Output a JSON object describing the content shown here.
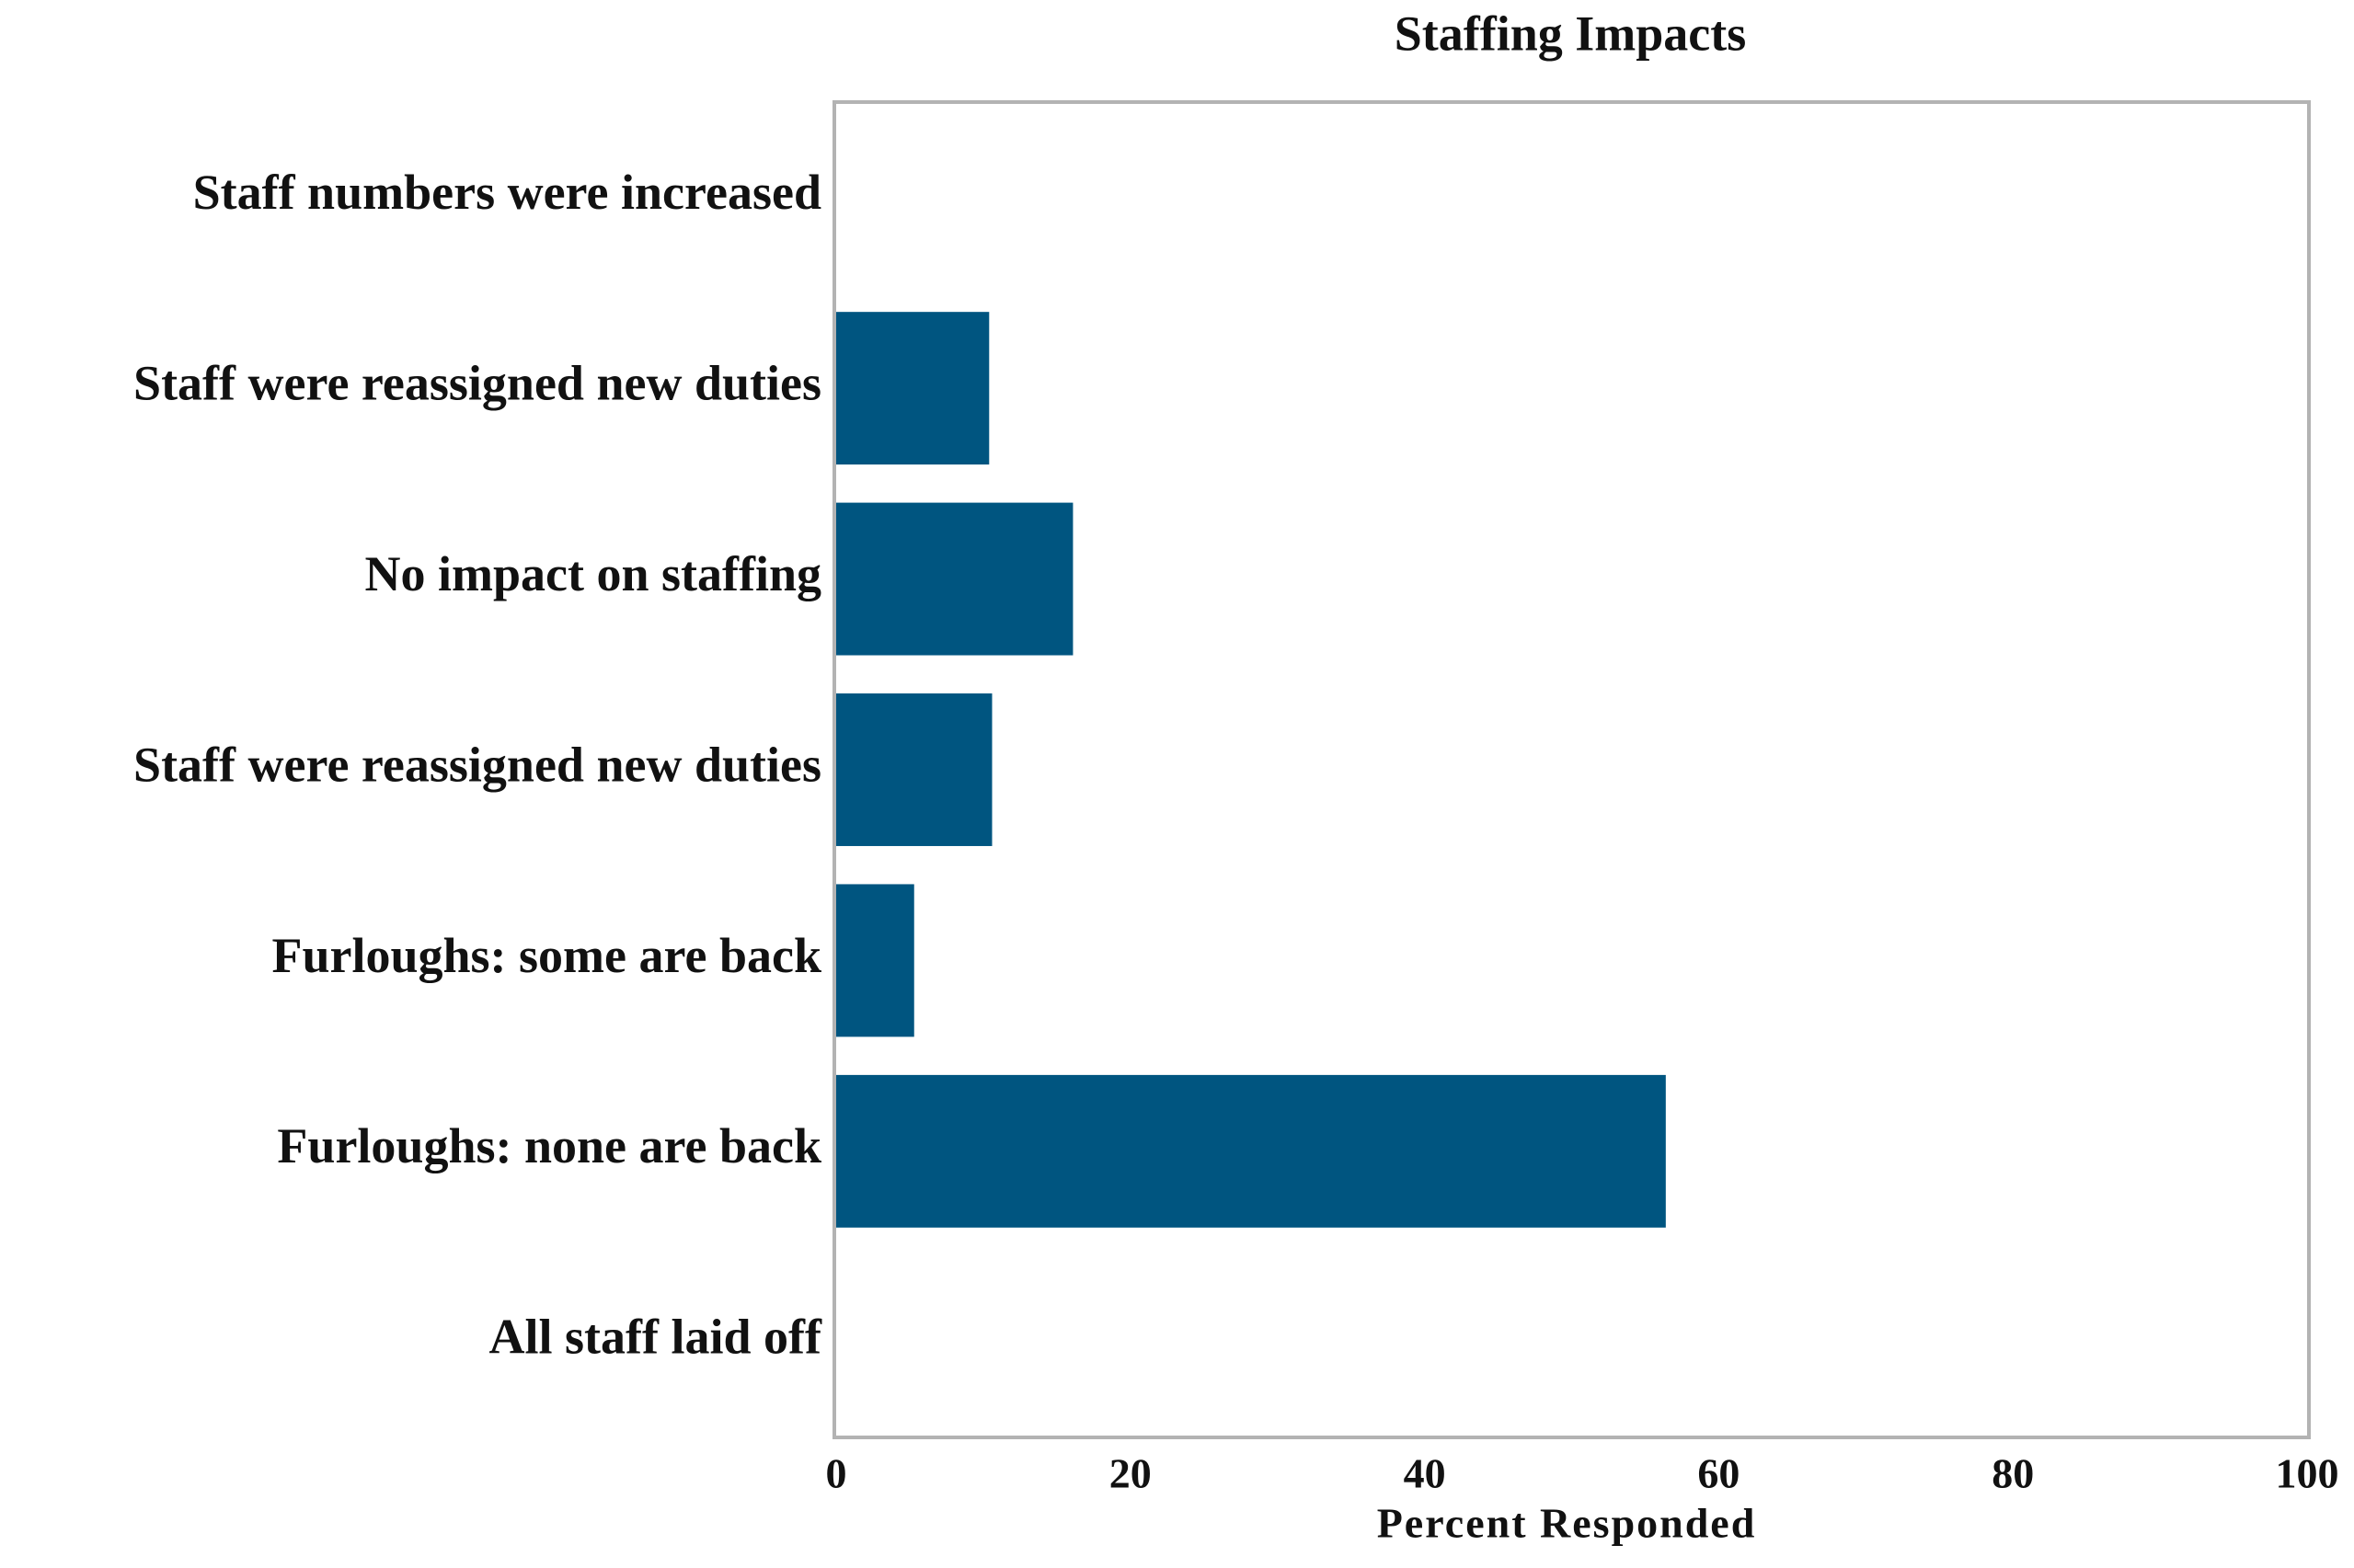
{
  "chart_data": {
    "type": "barh",
    "title": "Staffing Impacts",
    "x_label": "Percent Responded",
    "categories": [
      "Staff numbers were increased",
      "Staff were reassigned new duties",
      "No impact on staffing",
      "Staff were reassigned new duties",
      "Furloughs: some are back",
      "Furloughs: none are back",
      "All staff laid off"
    ],
    "values": [
      0,
      10.4,
      16.1,
      10.6,
      5.3,
      56.4,
      0
    ],
    "color": "#005580",
    "xlim": [
      0,
      100
    ],
    "xticks": [
      0,
      20,
      40,
      60,
      80,
      100
    ],
    "grid": false
  }
}
